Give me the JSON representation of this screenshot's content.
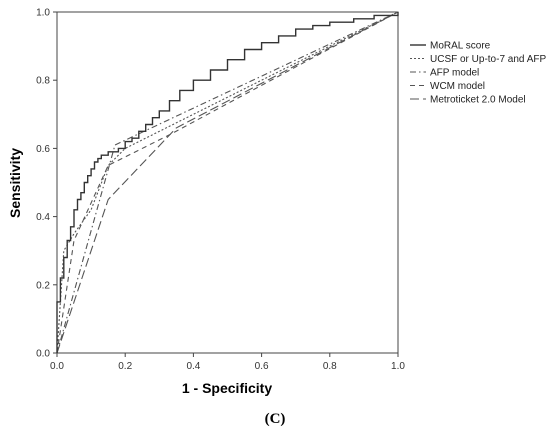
{
  "chart_data": {
    "type": "line",
    "title": "",
    "xlabel": "1 - Specificity",
    "ylabel": "Sensitivity",
    "xlim": [
      0.0,
      1.0
    ],
    "ylim": [
      0.0,
      1.0
    ],
    "xticks": [
      "0.0",
      "0.2",
      "0.4",
      "0.6",
      "0.8",
      "1.0"
    ],
    "yticks": [
      "0.0",
      "0.2",
      "0.4",
      "0.6",
      "0.8",
      "1.0"
    ],
    "grid": false,
    "legend_position": "top-right",
    "series": [
      {
        "name": "MoRAL score",
        "color": "#333333",
        "style": "solid",
        "points": [
          [
            0,
            0
          ],
          [
            0,
            0.15
          ],
          [
            0.01,
            0.22
          ],
          [
            0.02,
            0.28
          ],
          [
            0.03,
            0.33
          ],
          [
            0.04,
            0.37
          ],
          [
            0.05,
            0.42
          ],
          [
            0.06,
            0.45
          ],
          [
            0.07,
            0.47
          ],
          [
            0.08,
            0.5
          ],
          [
            0.09,
            0.52
          ],
          [
            0.1,
            0.54
          ],
          [
            0.11,
            0.56
          ],
          [
            0.12,
            0.57
          ],
          [
            0.13,
            0.58
          ],
          [
            0.15,
            0.59
          ],
          [
            0.18,
            0.6
          ],
          [
            0.2,
            0.62
          ],
          [
            0.22,
            0.63
          ],
          [
            0.24,
            0.65
          ],
          [
            0.26,
            0.67
          ],
          [
            0.28,
            0.69
          ],
          [
            0.3,
            0.71
          ],
          [
            0.33,
            0.74
          ],
          [
            0.36,
            0.77
          ],
          [
            0.4,
            0.8
          ],
          [
            0.45,
            0.83
          ],
          [
            0.5,
            0.86
          ],
          [
            0.55,
            0.89
          ],
          [
            0.6,
            0.91
          ],
          [
            0.65,
            0.93
          ],
          [
            0.7,
            0.95
          ],
          [
            0.75,
            0.96
          ],
          [
            0.8,
            0.97
          ],
          [
            0.87,
            0.98
          ],
          [
            0.93,
            0.99
          ],
          [
            1,
            1
          ]
        ]
      },
      {
        "name": "UCSF or Up-to-7 and AFP",
        "color": "#555555",
        "style": "dotted",
        "points": [
          [
            0,
            0
          ],
          [
            0.02,
            0.3
          ],
          [
            0.05,
            0.35
          ],
          [
            0.1,
            0.42
          ],
          [
            0.15,
            0.55
          ],
          [
            0.2,
            0.6
          ],
          [
            1,
            1
          ]
        ]
      },
      {
        "name": "AFP model",
        "color": "#555555",
        "style": "dashdot",
        "points": [
          [
            0,
            0
          ],
          [
            0.17,
            0.61
          ],
          [
            1,
            1
          ]
        ]
      },
      {
        "name": "WCM model",
        "color": "#555555",
        "style": "dashed",
        "points": [
          [
            0,
            0
          ],
          [
            0.05,
            0.33
          ],
          [
            0.15,
            0.55
          ],
          [
            0.33,
            0.64
          ],
          [
            1,
            1
          ]
        ]
      },
      {
        "name": "Metroticket 2.0 Model",
        "color": "#555555",
        "style": "longdash",
        "points": [
          [
            0,
            0
          ],
          [
            0.15,
            0.45
          ],
          [
            0.35,
            0.66
          ],
          [
            1,
            1
          ]
        ]
      }
    ]
  },
  "panel_label": "(C)"
}
